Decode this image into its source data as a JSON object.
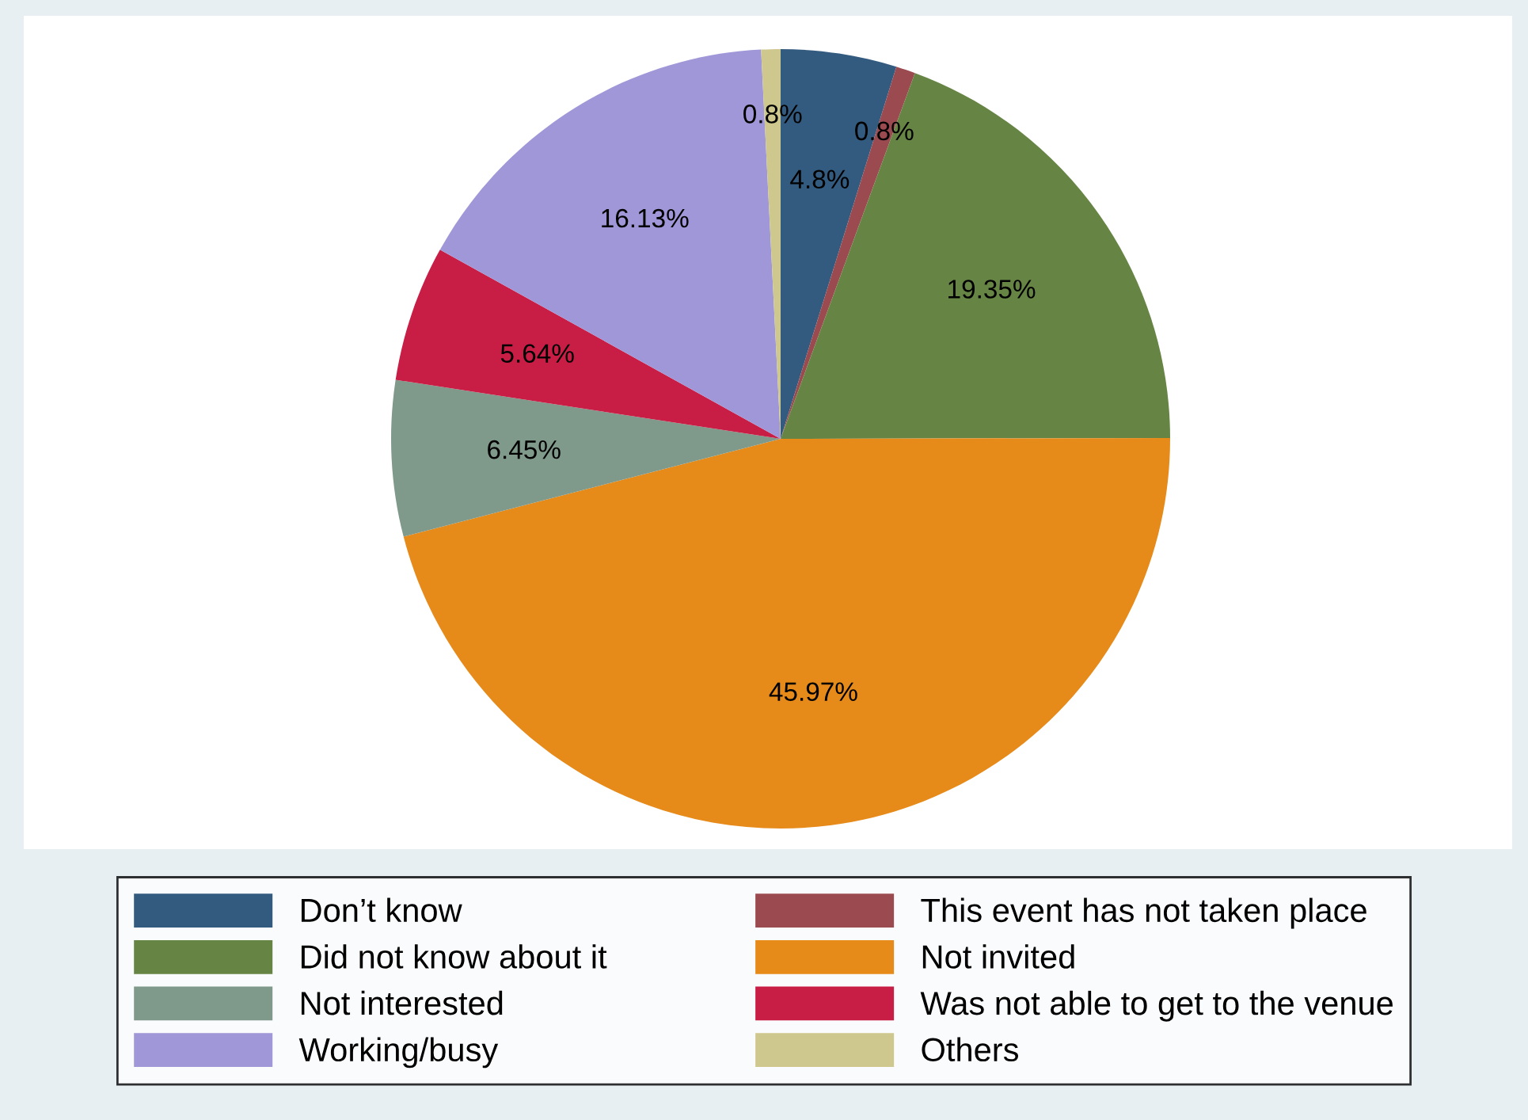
{
  "chart_data": {
    "type": "pie",
    "categories": [
      "Don’t know",
      "This event has not taken place",
      "Did not know about it",
      "Not invited",
      "Not interested",
      "Was not able to get to the venue",
      "Working/busy",
      "Others"
    ],
    "values": [
      4.8,
      0.8,
      19.35,
      45.97,
      6.45,
      5.64,
      16.13,
      0.8
    ],
    "value_labels": [
      "4.8%",
      "0.8%",
      "19.35%",
      "45.97%",
      "6.45%",
      "5.64%",
      "16.13%",
      "0.8%"
    ],
    "colors": [
      "#335a7f",
      "#9b4a4f",
      "#668444",
      "#e68a1a",
      "#7f998b",
      "#c81e46",
      "#9f97d7",
      "#cec88e"
    ],
    "legend": "bottom"
  }
}
